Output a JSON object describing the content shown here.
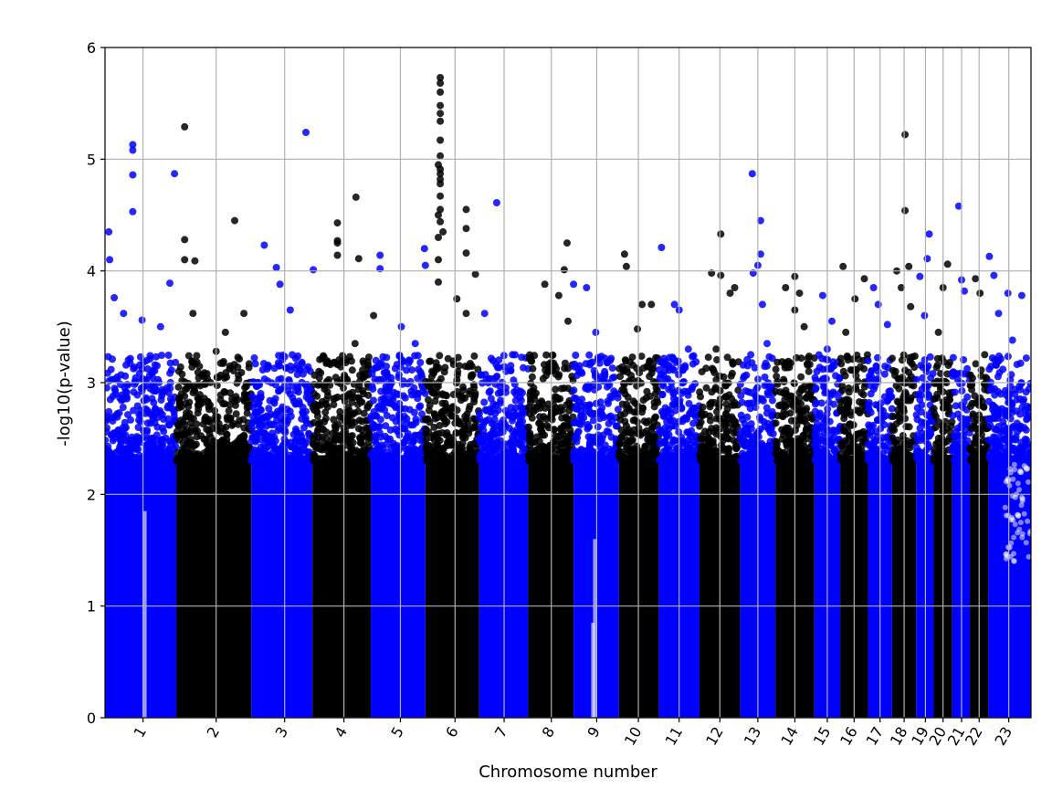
{
  "chart_data": {
    "type": "scatter",
    "subtype": "manhattan",
    "title": "",
    "xlabel": "Chromosome number",
    "ylabel": "-log10(p-value)",
    "ylim": [
      0,
      6
    ],
    "yticks": [
      0,
      1,
      2,
      3,
      4,
      5,
      6
    ],
    "grid": true,
    "legend": "none",
    "colors": {
      "odd": "#0000ff",
      "even": "#000000"
    },
    "x_ticks": [
      {
        "label": "1",
        "rel": 0.041
      },
      {
        "label": "2",
        "rel": 0.12
      },
      {
        "label": "3",
        "rel": 0.194
      },
      {
        "label": "4",
        "rel": 0.258
      },
      {
        "label": "5",
        "rel": 0.319
      },
      {
        "label": "6",
        "rel": 0.378
      },
      {
        "label": "7",
        "rel": 0.431
      },
      {
        "label": "8",
        "rel": 0.482
      },
      {
        "label": "9",
        "rel": 0.531
      },
      {
        "label": "10",
        "rel": 0.576
      },
      {
        "label": "11",
        "rel": 0.62
      },
      {
        "label": "12",
        "rel": 0.664
      },
      {
        "label": "13",
        "rel": 0.705
      },
      {
        "label": "14",
        "rel": 0.745
      },
      {
        "label": "15",
        "rel": 0.78
      },
      {
        "label": "16",
        "rel": 0.809
      },
      {
        "label": "17",
        "rel": 0.837
      },
      {
        "label": "18",
        "rel": 0.863
      },
      {
        "label": "19",
        "rel": 0.886
      },
      {
        "label": "20",
        "rel": 0.905
      },
      {
        "label": "21",
        "rel": 0.925
      },
      {
        "label": "22",
        "rel": 0.944
      },
      {
        "label": "23",
        "rel": 0.976
      }
    ],
    "series": [
      {
        "chromosome": "1",
        "color": "odd",
        "range": [
          0.0,
          0.077
        ],
        "points": [
          [
            0.004,
            4.35
          ],
          [
            0.005,
            4.1
          ],
          [
            0.03,
            5.13
          ],
          [
            0.03,
            5.08
          ],
          [
            0.03,
            4.86
          ],
          [
            0.03,
            4.53
          ],
          [
            0.01,
            3.76
          ],
          [
            0.04,
            3.56
          ],
          [
            0.02,
            3.62
          ],
          [
            0.06,
            3.5
          ],
          [
            0.07,
            3.89
          ]
        ]
      },
      {
        "chromosome": "2",
        "color": "even",
        "range": [
          0.077,
          0.158
        ],
        "points": [
          [
            0.086,
            5.29
          ],
          [
            0.086,
            4.28
          ],
          [
            0.086,
            4.1
          ],
          [
            0.097,
            4.09
          ],
          [
            0.14,
            4.45
          ],
          [
            0.095,
            3.62
          ],
          [
            0.12,
            3.28
          ],
          [
            0.13,
            3.45
          ],
          [
            0.15,
            3.62
          ]
        ]
      },
      {
        "chromosome": "3",
        "color": "odd",
        "range": [
          0.158,
          0.224
        ],
        "points": [
          [
            0.075,
            4.87
          ],
          [
            0.172,
            4.23
          ],
          [
            0.185,
            4.03
          ],
          [
            0.189,
            3.88
          ],
          [
            0.217,
            5.24
          ],
          [
            0.225,
            4.01
          ],
          [
            0.2,
            3.65
          ]
        ]
      },
      {
        "chromosome": "4",
        "color": "even",
        "range": [
          0.224,
          0.287
        ],
        "points": [
          [
            0.251,
            4.43
          ],
          [
            0.251,
            4.27
          ],
          [
            0.251,
            4.25
          ],
          [
            0.251,
            4.14
          ],
          [
            0.271,
            4.66
          ],
          [
            0.274,
            4.11
          ],
          [
            0.27,
            3.35
          ],
          [
            0.29,
            3.6
          ]
        ]
      },
      {
        "chromosome": "5",
        "color": "odd",
        "range": [
          0.287,
          0.346
        ],
        "points": [
          [
            0.297,
            4.14
          ],
          [
            0.297,
            4.02
          ],
          [
            0.345,
            4.2
          ],
          [
            0.346,
            4.05
          ],
          [
            0.32,
            3.5
          ],
          [
            0.335,
            3.35
          ]
        ]
      },
      {
        "chromosome": "6",
        "color": "even",
        "range": [
          0.346,
          0.404
        ],
        "points": [
          [
            0.36,
            4.95
          ],
          [
            0.36,
            4.5
          ],
          [
            0.36,
            4.3
          ],
          [
            0.36,
            4.1
          ],
          [
            0.36,
            3.9
          ],
          [
            0.362,
            5.73
          ],
          [
            0.362,
            5.68
          ],
          [
            0.362,
            5.6
          ],
          [
            0.362,
            5.48
          ],
          [
            0.362,
            5.41
          ],
          [
            0.362,
            5.34
          ],
          [
            0.362,
            5.17
          ],
          [
            0.362,
            5.03
          ],
          [
            0.362,
            4.91
          ],
          [
            0.362,
            4.87
          ],
          [
            0.362,
            4.82
          ],
          [
            0.362,
            4.78
          ],
          [
            0.362,
            4.67
          ],
          [
            0.362,
            4.55
          ],
          [
            0.362,
            4.44
          ],
          [
            0.365,
            4.35
          ],
          [
            0.39,
            4.55
          ],
          [
            0.39,
            4.38
          ],
          [
            0.39,
            4.16
          ],
          [
            0.4,
            3.97
          ],
          [
            0.38,
            3.75
          ],
          [
            0.39,
            3.62
          ]
        ]
      },
      {
        "chromosome": "7",
        "color": "odd",
        "range": [
          0.404,
          0.457
        ],
        "points": [
          [
            0.423,
            4.61
          ],
          [
            0.41,
            3.62
          ],
          [
            0.44,
            3.25
          ]
        ]
      },
      {
        "chromosome": "8",
        "color": "even",
        "range": [
          0.457,
          0.506
        ],
        "points": [
          [
            0.475,
            3.88
          ],
          [
            0.49,
            3.78
          ],
          [
            0.499,
            4.25
          ],
          [
            0.496,
            4.01
          ],
          [
            0.5,
            3.55
          ]
        ]
      },
      {
        "chromosome": "9",
        "color": "odd",
        "range": [
          0.506,
          0.555
        ],
        "points": [
          [
            0.506,
            3.88
          ],
          [
            0.52,
            3.85
          ],
          [
            0.53,
            3.45
          ]
        ]
      },
      {
        "chromosome": "10",
        "color": "even",
        "range": [
          0.555,
          0.598
        ],
        "points": [
          [
            0.561,
            4.15
          ],
          [
            0.563,
            4.04
          ],
          [
            0.58,
            3.7
          ],
          [
            0.59,
            3.7
          ],
          [
            0.575,
            3.48
          ]
        ]
      },
      {
        "chromosome": "11",
        "color": "odd",
        "range": [
          0.598,
          0.642
        ],
        "points": [
          [
            0.601,
            4.21
          ],
          [
            0.615,
            3.7
          ],
          [
            0.62,
            3.65
          ],
          [
            0.63,
            3.3
          ]
        ]
      },
      {
        "chromosome": "12",
        "color": "even",
        "range": [
          0.642,
          0.686
        ],
        "points": [
          [
            0.665,
            4.33
          ],
          [
            0.655,
            3.98
          ],
          [
            0.665,
            3.96
          ],
          [
            0.68,
            3.85
          ],
          [
            0.675,
            3.8
          ],
          [
            0.66,
            3.3
          ]
        ]
      },
      {
        "chromosome": "13",
        "color": "odd",
        "range": [
          0.686,
          0.724
        ],
        "points": [
          [
            0.699,
            4.87
          ],
          [
            0.708,
            4.45
          ],
          [
            0.708,
            4.15
          ],
          [
            0.705,
            4.05
          ],
          [
            0.7,
            3.98
          ],
          [
            0.71,
            3.7
          ],
          [
            0.715,
            3.35
          ]
        ]
      },
      {
        "chromosome": "14",
        "color": "even",
        "range": [
          0.724,
          0.766
        ],
        "points": [
          [
            0.745,
            3.95
          ],
          [
            0.735,
            3.85
          ],
          [
            0.75,
            3.8
          ],
          [
            0.745,
            3.65
          ],
          [
            0.755,
            3.5
          ]
        ]
      },
      {
        "chromosome": "15",
        "color": "odd",
        "range": [
          0.766,
          0.794
        ],
        "points": [
          [
            0.775,
            3.78
          ],
          [
            0.785,
            3.55
          ],
          [
            0.78,
            3.3
          ]
        ]
      },
      {
        "chromosome": "16",
        "color": "even",
        "range": [
          0.794,
          0.824
        ],
        "points": [
          [
            0.797,
            4.04
          ],
          [
            0.82,
            3.93
          ],
          [
            0.81,
            3.75
          ],
          [
            0.8,
            3.45
          ]
        ]
      },
      {
        "chromosome": "17",
        "color": "odd",
        "range": [
          0.824,
          0.85
        ],
        "points": [
          [
            0.83,
            3.85
          ],
          [
            0.835,
            3.7
          ],
          [
            0.845,
            3.52
          ]
        ]
      },
      {
        "chromosome": "18",
        "color": "even",
        "range": [
          0.85,
          0.876
        ],
        "points": [
          [
            0.864,
            5.22
          ],
          [
            0.864,
            4.54
          ],
          [
            0.868,
            4.04
          ],
          [
            0.855,
            4.0
          ],
          [
            0.86,
            3.85
          ],
          [
            0.87,
            3.68
          ]
        ]
      },
      {
        "chromosome": "19",
        "color": "odd",
        "range": [
          0.876,
          0.895
        ],
        "points": [
          [
            0.89,
            4.33
          ],
          [
            0.888,
            4.11
          ],
          [
            0.88,
            3.95
          ],
          [
            0.885,
            3.6
          ]
        ]
      },
      {
        "chromosome": "20",
        "color": "even",
        "range": [
          0.895,
          0.915
        ],
        "points": [
          [
            0.91,
            4.06
          ],
          [
            0.905,
            3.85
          ],
          [
            0.9,
            3.45
          ]
        ]
      },
      {
        "chromosome": "21",
        "color": "odd",
        "range": [
          0.915,
          0.934
        ],
        "points": [
          [
            0.922,
            4.58
          ],
          [
            0.925,
            3.92
          ],
          [
            0.928,
            3.82
          ]
        ]
      },
      {
        "chromosome": "22",
        "color": "even",
        "range": [
          0.934,
          0.954
        ],
        "points": [
          [
            0.94,
            3.93
          ],
          [
            0.945,
            3.8
          ],
          [
            0.95,
            3.25
          ]
        ]
      },
      {
        "chromosome": "23",
        "color": "odd",
        "range": [
          0.954,
          1.0
        ],
        "points": [
          [
            0.955,
            4.13
          ],
          [
            0.96,
            3.96
          ],
          [
            0.975,
            3.8
          ],
          [
            0.99,
            3.78
          ],
          [
            0.965,
            3.62
          ],
          [
            0.98,
            3.38
          ],
          [
            0.995,
            3.22
          ]
        ]
      }
    ]
  }
}
